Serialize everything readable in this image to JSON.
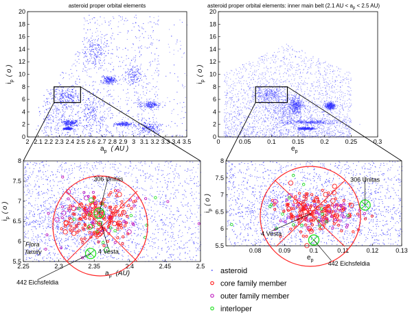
{
  "chart_data": [
    {
      "type": "scatter",
      "title": "asteroid proper orbital elements",
      "xlabel": {
        "main": "a",
        "sub": "p",
        "unit": "( AU )"
      },
      "ylabel": {
        "main": "i",
        "sub": "p",
        "unit": "( o )"
      },
      "xlim": [
        2,
        3.5
      ],
      "ylim": [
        0,
        20
      ],
      "xticks": [
        "2",
        "2.1",
        "2.2",
        "2.3",
        "2.4",
        "2.5",
        "2.6",
        "2.7",
        "2.8",
        "2.9",
        "3",
        "3.1",
        "3.2",
        "3.3",
        "3.4",
        "3.5"
      ],
      "yticks": [
        "0",
        "2",
        "4",
        "6",
        "8",
        "10",
        "12",
        "14",
        "16",
        "18",
        "20"
      ],
      "zoom_box": {
        "x": [
          2.25,
          2.5
        ],
        "y": [
          5.5,
          8
        ]
      },
      "dense_regions": [
        {
          "x": 2.35,
          "y": 6.5,
          "sx": 0.07,
          "sy": 0.7
        },
        {
          "x": 2.3,
          "y": 3.8,
          "sx": 0.1,
          "sy": 1.5
        },
        {
          "x": 2.4,
          "y": 2.3,
          "sx": 0.04,
          "sy": 0.25
        },
        {
          "x": 2.38,
          "y": 1.4,
          "sx": 0.02,
          "sy": 0.1
        },
        {
          "x": 2.63,
          "y": 13.5,
          "sx": 0.06,
          "sy": 1.2
        },
        {
          "x": 2.6,
          "y": 4.0,
          "sx": 0.07,
          "sy": 1.5
        },
        {
          "x": 2.77,
          "y": 9.1,
          "sx": 0.03,
          "sy": 0.3
        },
        {
          "x": 2.9,
          "y": 2.1,
          "sx": 0.04,
          "sy": 0.15
        },
        {
          "x": 3.0,
          "y": 10.0,
          "sx": 0.04,
          "sy": 0.8
        },
        {
          "x": 3.15,
          "y": 5.2,
          "sx": 0.05,
          "sy": 0.3
        },
        {
          "x": 3.15,
          "y": 1.5,
          "sx": 0.06,
          "sy": 0.5
        }
      ],
      "point_color": "#2b2bff"
    },
    {
      "type": "scatter",
      "title": {
        "pre": "asteroid proper orbital elements: inner main belt (2.1 AU < a",
        "sub": "p",
        "post": " < 2.5 AU)"
      },
      "xlabel": {
        "main": "e",
        "sub": "p"
      },
      "ylabel": {
        "main": "i",
        "sub": "p",
        "unit": "( o )"
      },
      "xlim": [
        0,
        0.3
      ],
      "ylim": [
        0,
        20
      ],
      "xticks": [
        "0",
        "0.05",
        "0.1",
        "0.15",
        "0.2",
        "0.25",
        "0.3"
      ],
      "yticks": [
        "0",
        "2",
        "4",
        "6",
        "8",
        "10",
        "12",
        "14",
        "16",
        "18",
        "20"
      ],
      "zoom_box": {
        "x": [
          0.07,
          0.13
        ],
        "y": [
          5.5,
          8
        ]
      },
      "dense_regions": [
        {
          "x": 0.095,
          "y": 6.8,
          "sx": 0.015,
          "sy": 0.6
        },
        {
          "x": 0.13,
          "y": 4.3,
          "sx": 0.02,
          "sy": 1.0
        },
        {
          "x": 0.17,
          "y": 2.4,
          "sx": 0.03,
          "sy": 0.2
        },
        {
          "x": 0.165,
          "y": 1.4,
          "sx": 0.008,
          "sy": 0.1
        },
        {
          "x": 0.145,
          "y": 5.2,
          "sx": 0.006,
          "sy": 0.6
        },
        {
          "x": 0.21,
          "y": 5.0,
          "sx": 0.005,
          "sy": 0.3
        }
      ],
      "point_color": "#2b2bff"
    },
    {
      "type": "scatter",
      "xlabel": {
        "main": "a",
        "sub": "p",
        "unit": "(AU)"
      },
      "ylabel": {
        "main": "i",
        "sub": "p",
        "unit": "( o )"
      },
      "xlim": [
        2.25,
        2.5
      ],
      "ylim": [
        5.5,
        8
      ],
      "xticks": [
        "2.25",
        "2.3",
        "2.35",
        "2.4",
        "2.45",
        "2.5"
      ],
      "yticks": [
        "5.5",
        "6",
        "6.5",
        "7",
        "7.5",
        "8"
      ],
      "family_center": {
        "x": 2.355,
        "y": 6.55
      },
      "annotations": [
        {
          "text": "306 Unitas",
          "x": 2.357,
          "y": 6.7,
          "lx": 2.37,
          "ly": 7.55,
          "marker": "interloper-large"
        },
        {
          "text": "4 Vesta",
          "x": 2.36,
          "y": 6.45,
          "lx": 2.37,
          "ly": 5.75,
          "marker": "none"
        },
        {
          "text": "442 Eichsfeldia",
          "x": 2.345,
          "y": 5.7,
          "lx": 2.27,
          "ly": 4.98,
          "marker": "interloper-large"
        }
      ],
      "region_label": {
        "line1": "Flora",
        "line2": "family"
      }
    },
    {
      "type": "scatter",
      "xlabel": {
        "main": "e",
        "sub": "p"
      },
      "ylabel": {
        "main": "i",
        "sub": "p",
        "unit": "( o )"
      },
      "xlim": [
        0.07,
        0.13
      ],
      "ylim": [
        5.5,
        8
      ],
      "xticks": [
        "0.08",
        "0.09",
        "0.1",
        "0.11",
        "0.12",
        "0.13"
      ],
      "yticks": [
        "5.5",
        "6",
        "6.5",
        "7",
        "7.5",
        "8"
      ],
      "family_center": {
        "x": 0.1,
        "y": 6.5
      },
      "annotations": [
        {
          "text": "306 Unitas",
          "x": 0.1175,
          "y": 6.7,
          "lx": 0.1175,
          "ly": 7.45,
          "marker": "interloper-large"
        },
        {
          "text": "4 Vesta",
          "x": 0.099,
          "y": 6.45,
          "lx": 0.0855,
          "ly": 5.85,
          "marker": "none"
        },
        {
          "text": "442 Eichsfeldia",
          "x": 0.1,
          "y": 5.67,
          "lx": 0.106,
          "ly": 4.98,
          "marker": "interloper-large"
        }
      ]
    }
  ],
  "legend": [
    {
      "label": "asteroid",
      "color": "#2b2bff",
      "marker": "dot"
    },
    {
      "label": "core family member",
      "color": "#ff2020",
      "marker": "circle"
    },
    {
      "label": "outer family member",
      "color": "#c020c0",
      "marker": "circle"
    },
    {
      "label": "interloper",
      "color": "#20e020",
      "marker": "circle"
    }
  ]
}
